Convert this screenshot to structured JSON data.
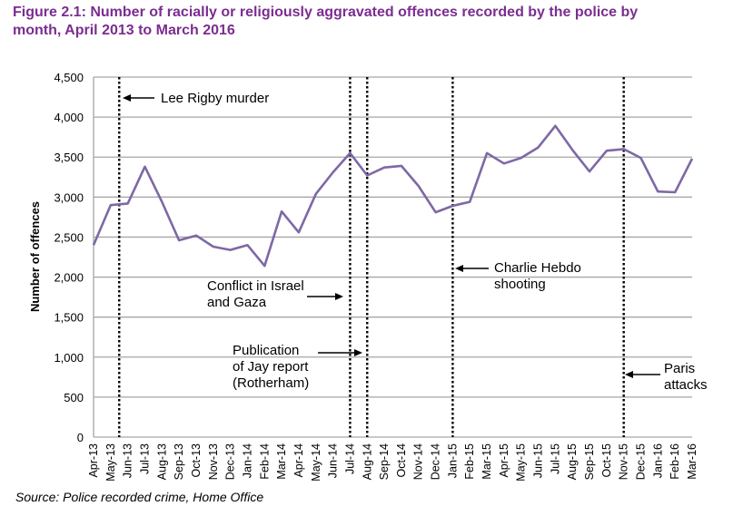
{
  "title": "Figure 2.1: Number of racially or religiously aggravated offences recorded by the police by month, April 2013 to March 2016",
  "title_lines": [
    "Figure 2.1: Number of racially or religiously aggravated offences recorded by the police by",
    "month, April 2013 to March 2016"
  ],
  "source": "Source: Police recorded crime, Home Office",
  "colors": {
    "title": "#7b2d90",
    "line": "#7e68a6",
    "grid": "#a6a6a6",
    "event": "#000000"
  },
  "chart_data": {
    "type": "line",
    "title": "Number of racially or religiously aggravated offences recorded by the police by month, April 2013 to March 2016",
    "xlabel": "",
    "ylabel": "Number of offences",
    "ylim": [
      0,
      4500
    ],
    "yticks": [
      0,
      500,
      1000,
      1500,
      2000,
      2500,
      3000,
      3500,
      4000,
      4500
    ],
    "ytick_labels": [
      "0",
      "500",
      "1,000",
      "1,500",
      "2,000",
      "2,500",
      "3,000",
      "3,500",
      "4,000",
      "4,500"
    ],
    "grid": true,
    "legend": "none",
    "categories": [
      "Apr-13",
      "May-13",
      "Jun-13",
      "Jul-13",
      "Aug-13",
      "Sep-13",
      "Oct-13",
      "Nov-13",
      "Dec-13",
      "Jan-14",
      "Feb-14",
      "Mar-14",
      "Apr-14",
      "May-14",
      "Jun-14",
      "Jul-14",
      "Aug-14",
      "Sep-14",
      "Oct-14",
      "Nov-14",
      "Dec-14",
      "Jan-15",
      "Feb-15",
      "Mar-15",
      "Apr-15",
      "May-15",
      "Jun-15",
      "Jul-15",
      "Aug-15",
      "Sep-15",
      "Oct-15",
      "Nov-15",
      "Dec-15",
      "Jan-16",
      "Feb-16",
      "Mar-16"
    ],
    "series": [
      {
        "name": "Racially or religiously aggravated offences",
        "values": [
          2400,
          2900,
          2920,
          3380,
          2940,
          2460,
          2520,
          2380,
          2340,
          2400,
          2140,
          2820,
          2560,
          3040,
          3310,
          3550,
          3270,
          3370,
          3390,
          3140,
          2810,
          2890,
          2940,
          3550,
          3420,
          3490,
          3620,
          3890,
          3590,
          3320,
          3580,
          3600,
          3490,
          3070,
          3060,
          3480
        ]
      }
    ],
    "events": [
      {
        "label_lines": [
          "Lee Rigby murder"
        ],
        "position": 1.5,
        "arrow": "left"
      },
      {
        "label_lines": [
          "Conflict in Israel",
          "and Gaza"
        ],
        "position": 15,
        "arrow": "right"
      },
      {
        "label_lines": [
          "Publication",
          "of Jay report",
          "(Rotherham)"
        ],
        "position": 16,
        "arrow": "right"
      },
      {
        "label_lines": [
          "Charlie Hebdo",
          "shooting"
        ],
        "position": 21,
        "arrow": "left"
      },
      {
        "label_lines": [
          "Paris",
          "attacks"
        ],
        "position": 31,
        "arrow": "left"
      }
    ]
  }
}
